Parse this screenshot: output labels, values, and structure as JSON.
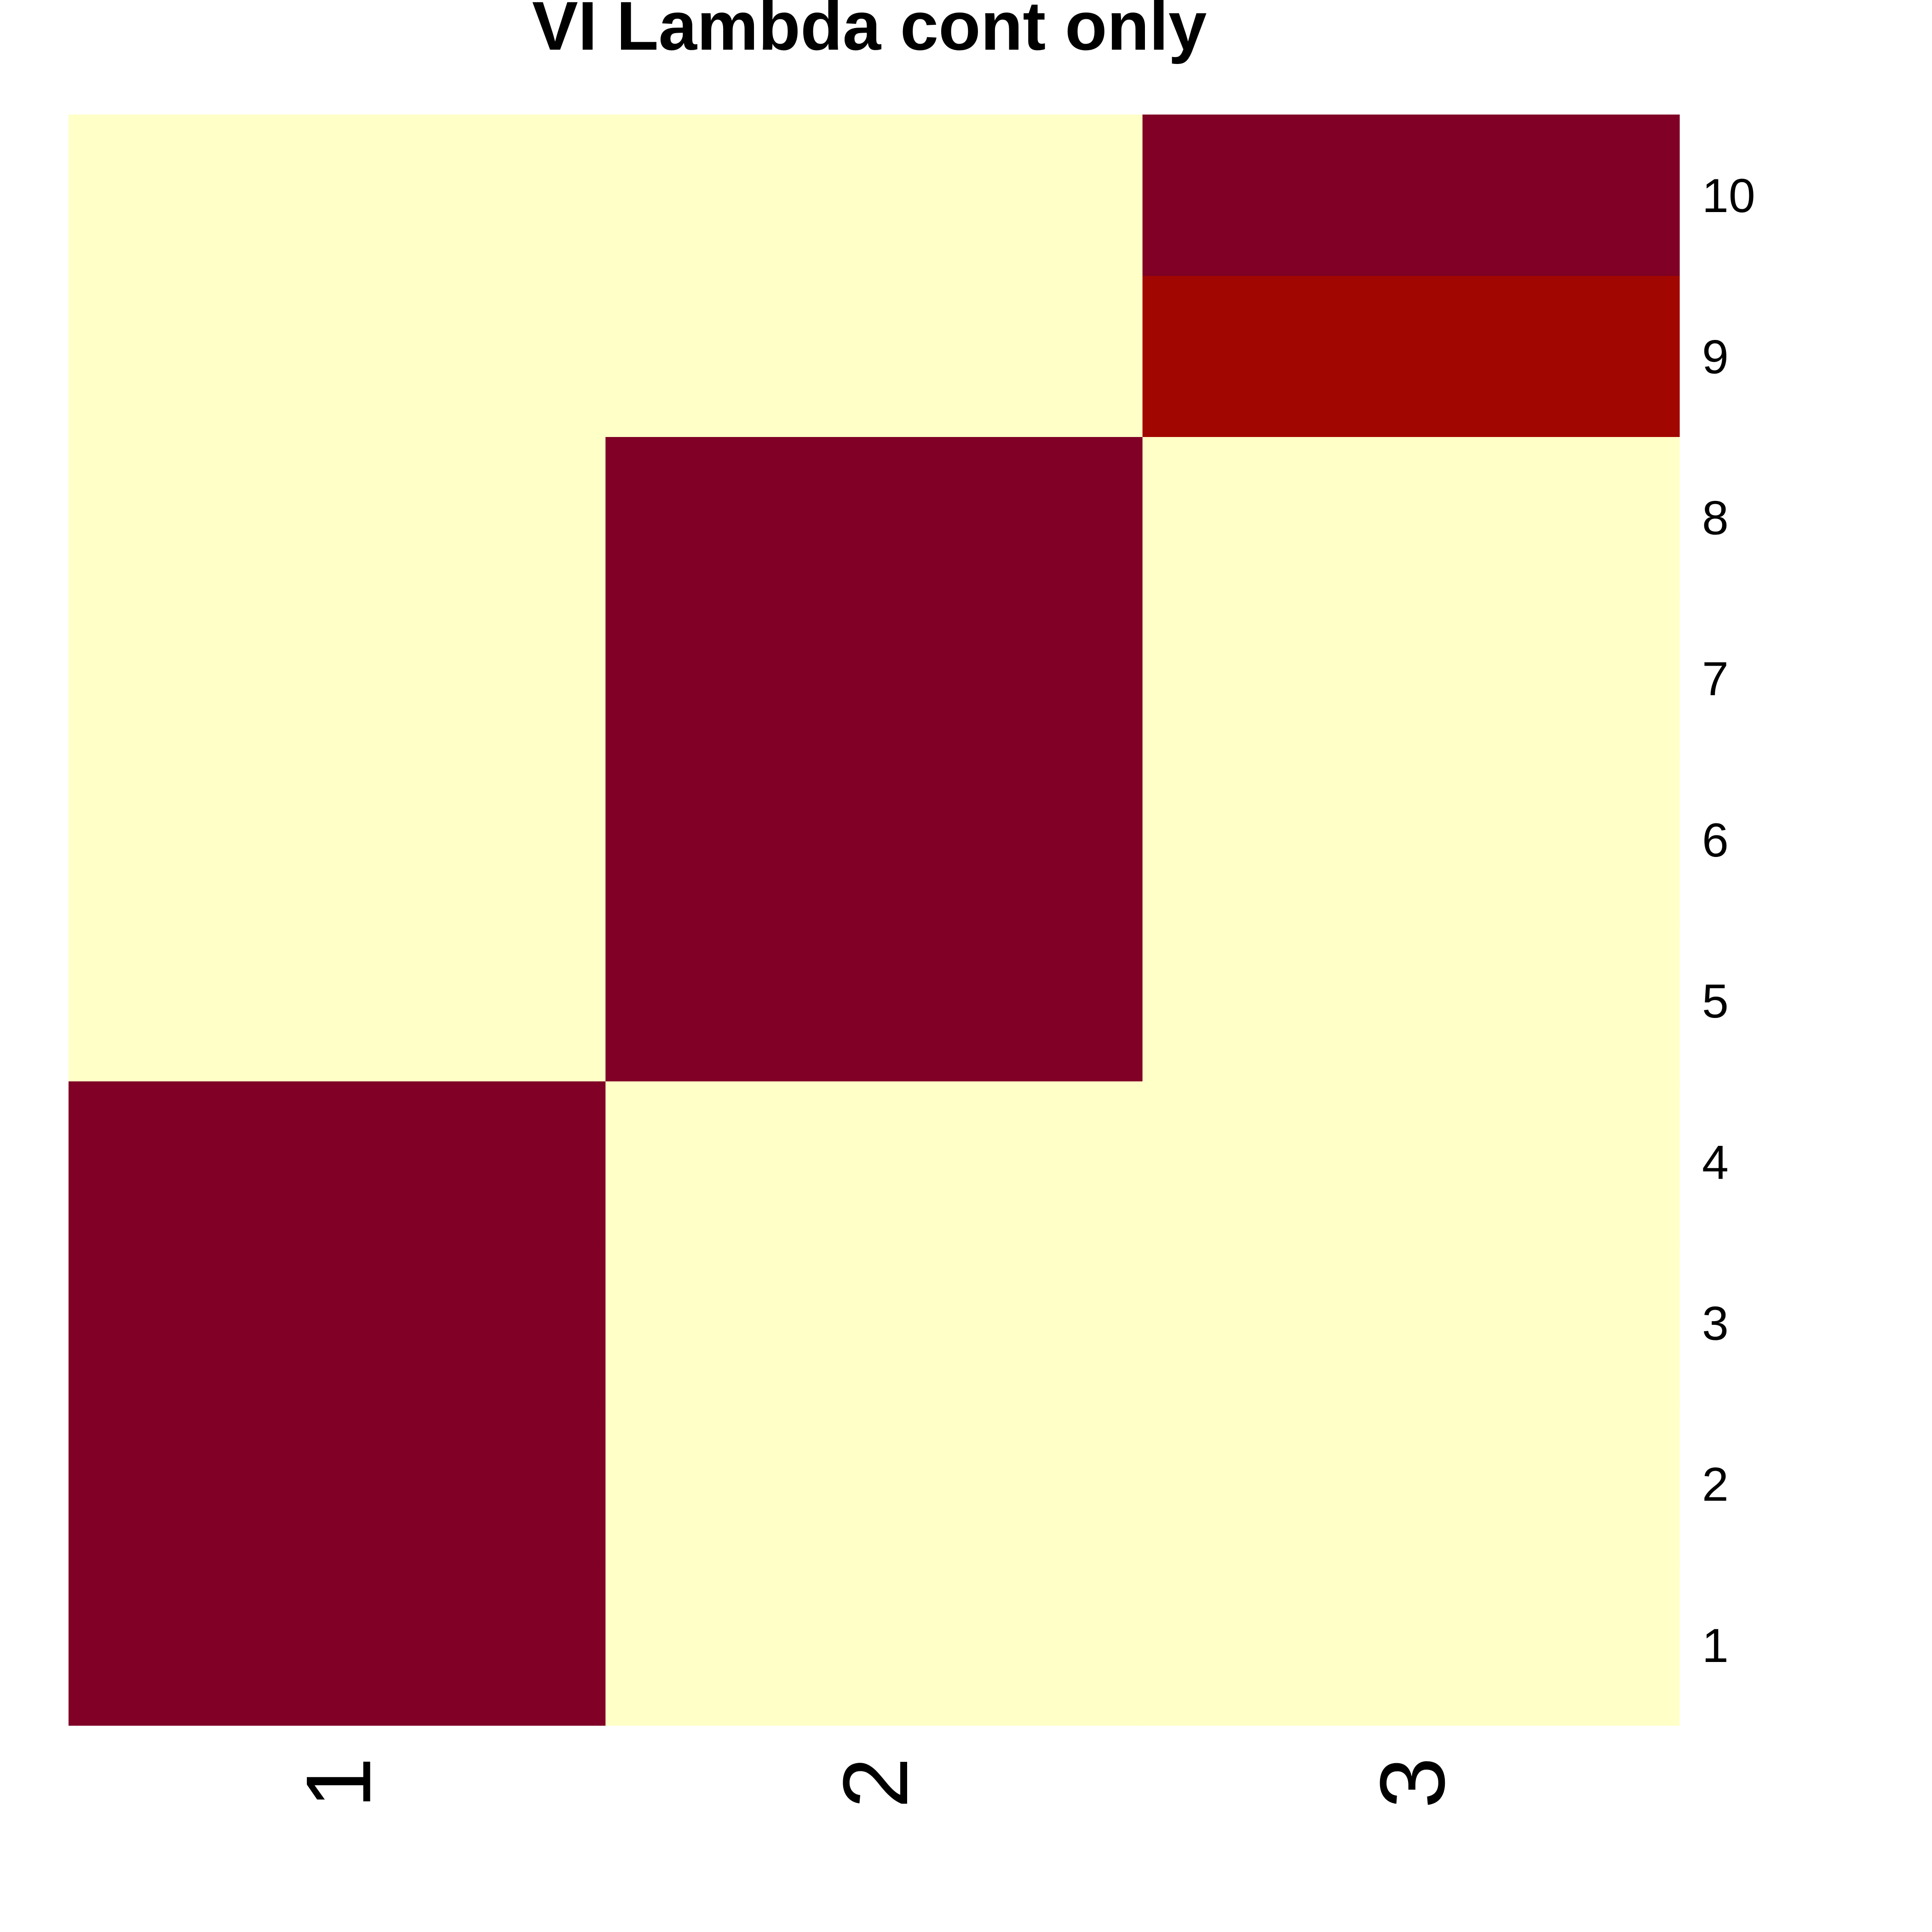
{
  "chart_data": {
    "type": "heatmap",
    "title": "VI Lambda cont only",
    "xlabel": "",
    "ylabel": "",
    "columns": [
      "1",
      "2",
      "3"
    ],
    "rows": [
      "1",
      "2",
      "3",
      "4",
      "5",
      "6",
      "7",
      "8",
      "9",
      "10"
    ],
    "grid": false,
    "legend": "none",
    "palette": {
      "low": "#FFFFC8",
      "high": "#800026",
      "mid_high": "#A20600"
    },
    "cells": [
      {
        "row": "1",
        "column": "1",
        "color": "#800026"
      },
      {
        "row": "2",
        "column": "1",
        "color": "#800026"
      },
      {
        "row": "3",
        "column": "1",
        "color": "#800026"
      },
      {
        "row": "4",
        "column": "1",
        "color": "#800026"
      },
      {
        "row": "5",
        "column": "1",
        "color": "#FFFFC8"
      },
      {
        "row": "6",
        "column": "1",
        "color": "#FFFFC8"
      },
      {
        "row": "7",
        "column": "1",
        "color": "#FFFFC8"
      },
      {
        "row": "8",
        "column": "1",
        "color": "#FFFFC8"
      },
      {
        "row": "9",
        "column": "1",
        "color": "#FFFFC8"
      },
      {
        "row": "10",
        "column": "1",
        "color": "#FFFFC8"
      },
      {
        "row": "1",
        "column": "2",
        "color": "#FFFFC8"
      },
      {
        "row": "2",
        "column": "2",
        "color": "#FFFFC8"
      },
      {
        "row": "3",
        "column": "2",
        "color": "#FFFFC8"
      },
      {
        "row": "4",
        "column": "2",
        "color": "#FFFFC8"
      },
      {
        "row": "5",
        "column": "2",
        "color": "#800026"
      },
      {
        "row": "6",
        "column": "2",
        "color": "#800026"
      },
      {
        "row": "7",
        "column": "2",
        "color": "#800026"
      },
      {
        "row": "8",
        "column": "2",
        "color": "#800026"
      },
      {
        "row": "9",
        "column": "2",
        "color": "#FFFFC8"
      },
      {
        "row": "10",
        "column": "2",
        "color": "#FFFFC8"
      },
      {
        "row": "1",
        "column": "3",
        "color": "#FFFFC8"
      },
      {
        "row": "2",
        "column": "3",
        "color": "#FFFFC8"
      },
      {
        "row": "3",
        "column": "3",
        "color": "#FFFFC8"
      },
      {
        "row": "4",
        "column": "3",
        "color": "#FFFFC8"
      },
      {
        "row": "5",
        "column": "3",
        "color": "#FFFFC8"
      },
      {
        "row": "6",
        "column": "3",
        "color": "#FFFFC8"
      },
      {
        "row": "7",
        "column": "3",
        "color": "#FFFFC8"
      },
      {
        "row": "8",
        "column": "3",
        "color": "#FFFFC8"
      },
      {
        "row": "9",
        "column": "3",
        "color": "#A20600"
      },
      {
        "row": "10",
        "column": "3",
        "color": "#800026"
      }
    ]
  }
}
